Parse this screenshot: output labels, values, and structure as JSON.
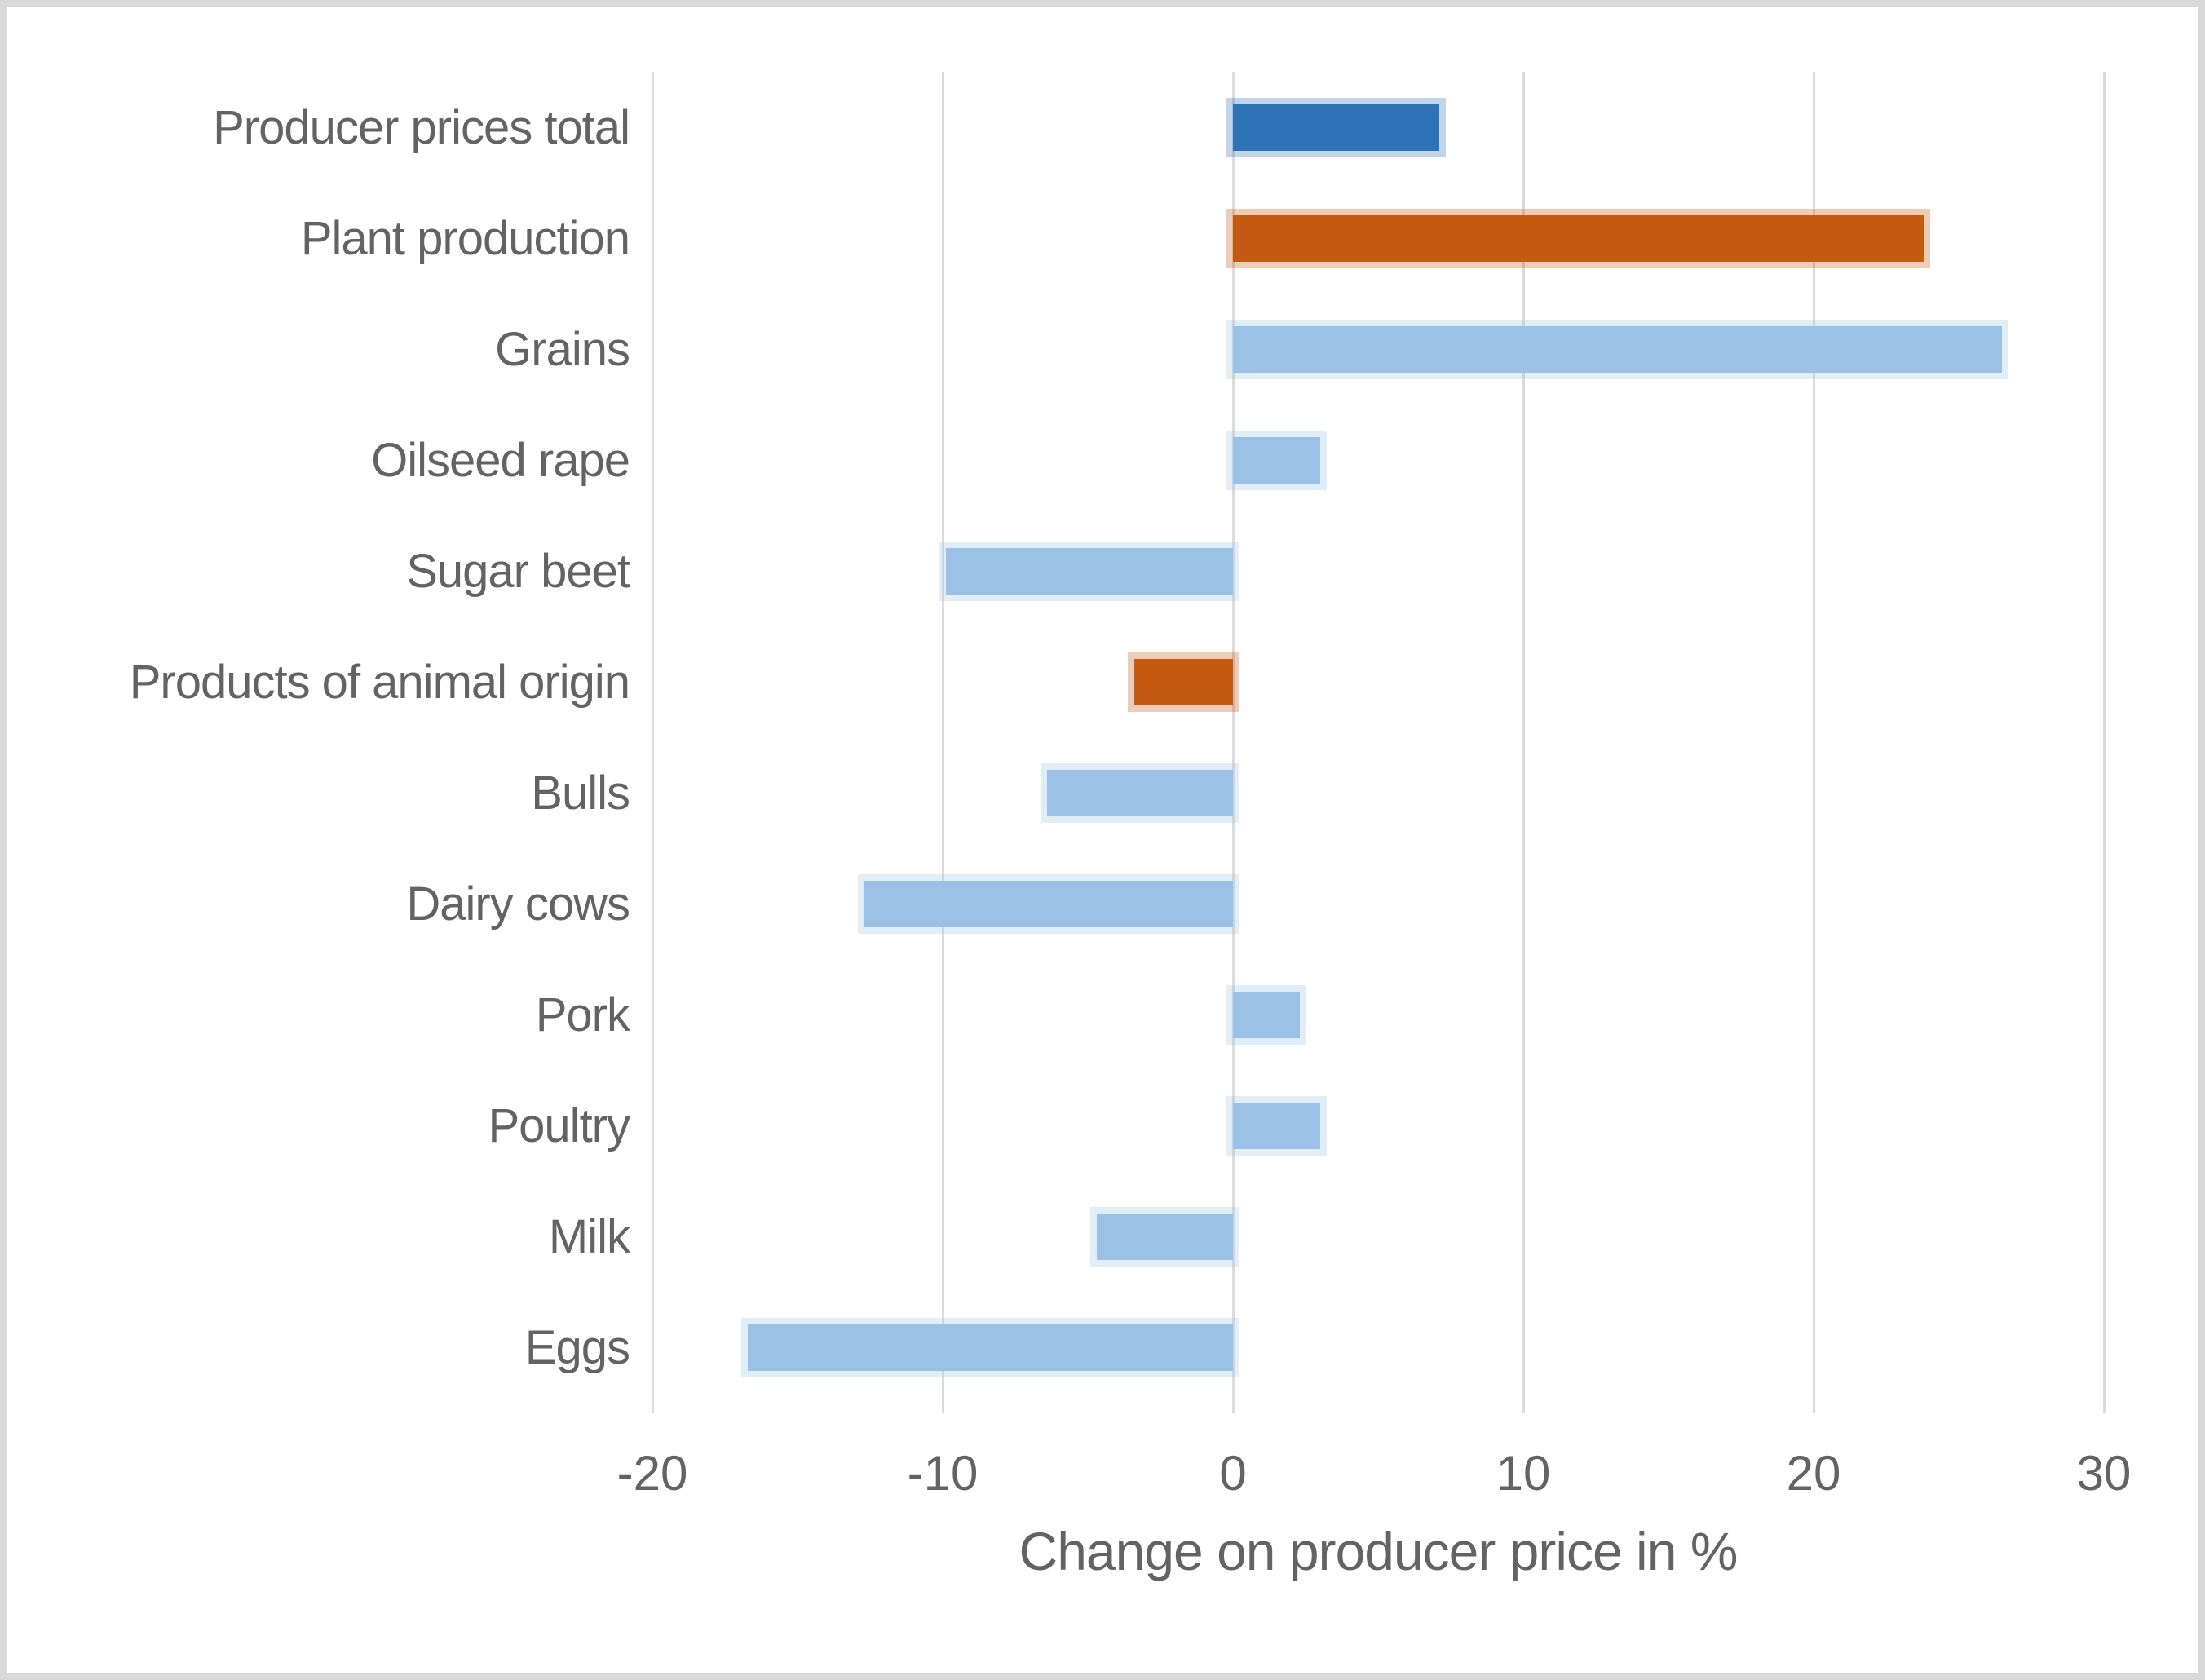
{
  "window": {
    "background_color": "#ffffff",
    "border_color": "#d9d9d9"
  },
  "chart_data": {
    "type": "bar",
    "orientation": "horizontal",
    "title": "",
    "xlabel": "Change on producer price in %",
    "ylabel": "",
    "xlim": [
      -20,
      30
    ],
    "x_ticks": [
      "-20",
      "-10",
      "0",
      "10",
      "20",
      "30"
    ],
    "x_tick_values": [
      -20,
      -10,
      0,
      10,
      20,
      30
    ],
    "grid": "vertical-only",
    "legend_position": "none",
    "categories": [
      "Producer prices total",
      "Plant production",
      "Grains",
      "Oilseed rape",
      "Sugar beet",
      "Products of animal origin",
      "Bulls",
      "Dairy cows",
      "Pork",
      "Poultry",
      "Milk",
      "Eggs"
    ],
    "values": [
      7.1,
      23.8,
      26.5,
      3.0,
      -9.9,
      -3.4,
      -6.4,
      -12.7,
      2.3,
      3.0,
      -4.7,
      -16.7
    ],
    "bar_colors": [
      "#2e73b5",
      "#c55a11",
      "#9bc2e6",
      "#9bc2e6",
      "#9bc2e6",
      "#c55a11",
      "#9bc2e6",
      "#9bc2e6",
      "#9bc2e6",
      "#9bc2e6",
      "#9bc2e6",
      "#9bc2e6"
    ],
    "palette": {
      "dark_blue": "#2e73b5",
      "orange": "#c55a11",
      "light_blue": "#9bc2e6",
      "gridline_gray": "#dcdcdc",
      "text_gray": "#636363"
    }
  }
}
